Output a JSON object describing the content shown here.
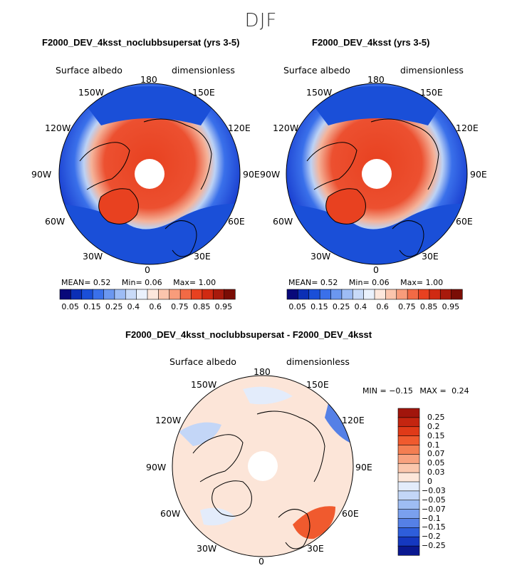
{
  "figure": {
    "season": "DJF"
  },
  "panels": [
    {
      "title": "F2000_DEV_4ksst_noclubbsupersat (yrs 3-5)",
      "variable": "Surface albedo",
      "units": "dimensionless",
      "lon_labels": [
        "180",
        "150E",
        "120E",
        "90E",
        "60E",
        "30E",
        "0",
        "30W",
        "60W",
        "90W",
        "120W",
        "150W"
      ],
      "stats": {
        "mean_label": "MEAN=",
        "mean": "0.52",
        "min_label": "Min=",
        "min": "0.06",
        "max_label": "Max=",
        "max": "1.00"
      },
      "colorbar": {
        "ticks": [
          "0.05",
          "0.15",
          "0.25",
          "0.4",
          "0.6",
          "0.75",
          "0.85",
          "0.95"
        ],
        "colors": [
          "#08087a",
          "#0b2fb5",
          "#1a4fd8",
          "#3a70ea",
          "#6b97f0",
          "#9dbcf5",
          "#c8daf8",
          "#eaf1fc",
          "#fde7dc",
          "#fbc5ad",
          "#f89c7b",
          "#f26a45",
          "#e84120",
          "#d02a12",
          "#a81a0c",
          "#7a0d05"
        ]
      }
    },
    {
      "title": "F2000_DEV_4ksst (yrs 3-5)",
      "variable": "Surface albedo",
      "units": "dimensionless",
      "lon_labels": [
        "180",
        "150E",
        "120E",
        "90E",
        "60E",
        "30E",
        "0",
        "30W",
        "60W",
        "90W",
        "120W",
        "150W"
      ],
      "stats": {
        "mean_label": "MEAN=",
        "mean": "0.52",
        "min_label": "Min=",
        "min": "0.06",
        "max_label": "Max=",
        "max": "1.00"
      },
      "colorbar": {
        "ticks": [
          "0.05",
          "0.15",
          "0.25",
          "0.4",
          "0.6",
          "0.75",
          "0.85",
          "0.95"
        ],
        "colors": [
          "#08087a",
          "#0b2fb5",
          "#1a4fd8",
          "#3a70ea",
          "#6b97f0",
          "#9dbcf5",
          "#c8daf8",
          "#eaf1fc",
          "#fde7dc",
          "#fbc5ad",
          "#f89c7b",
          "#f26a45",
          "#e84120",
          "#d02a12",
          "#a81a0c",
          "#7a0d05"
        ]
      }
    },
    {
      "title": "F2000_DEV_4ksst_noclubbsupersat - F2000_DEV_4ksst",
      "variable": "Surface albedo",
      "units": "dimensionless",
      "lon_labels": [
        "180",
        "150E",
        "120E",
        "90E",
        "60E",
        "30E",
        "0",
        "30W",
        "60W",
        "90W",
        "120W",
        "150W"
      ],
      "stats": {
        "min_label": "MIN =",
        "min": "−0.15",
        "max_label": "MAX =",
        "max": "0.24"
      },
      "colorbar": {
        "ticks": [
          "0.25",
          "0.2",
          "0.15",
          "0.1",
          "0.07",
          "0.05",
          "0.03",
          "0",
          "−0.03",
          "−0.05",
          "−0.07",
          "−0.1",
          "−0.15",
          "−0.2",
          "−0.25"
        ],
        "colors": [
          "#a1150c",
          "#c42510",
          "#e03a18",
          "#f05a2e",
          "#f47e52",
          "#f8a27f",
          "#fbc7ad",
          "#fde7da",
          "#e3ecfb",
          "#c3d6f7",
          "#9ebdf3",
          "#7aa0ee",
          "#5580e6",
          "#2e5edb",
          "#1538c0",
          "#0a1890"
        ]
      }
    }
  ]
}
